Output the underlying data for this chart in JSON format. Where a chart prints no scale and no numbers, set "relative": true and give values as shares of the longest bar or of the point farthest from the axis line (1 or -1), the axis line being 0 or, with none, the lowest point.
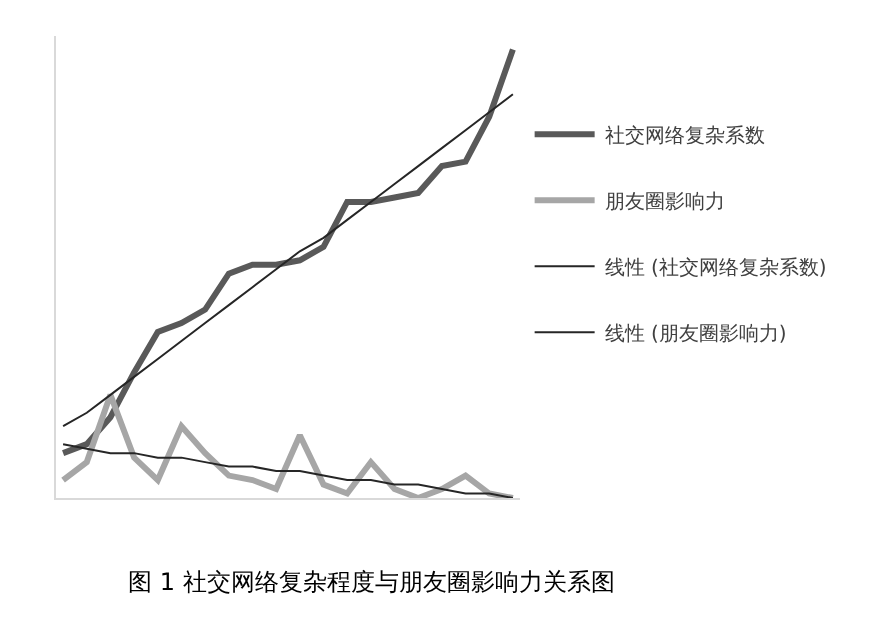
{
  "chart_data": {
    "type": "line",
    "relative": true,
    "title": "图 1 社交网络复杂程度与朋友圈影响力关系图",
    "categories": [
      null,
      null,
      null,
      null,
      null,
      null,
      null,
      null,
      null,
      null,
      null,
      null,
      null,
      null,
      null,
      null,
      null,
      null,
      null,
      null
    ],
    "series": [
      {
        "name": "社交网络复杂系数",
        "color": "#595959",
        "values": [
          0.1,
          0.12,
          0.18,
          0.28,
          0.37,
          0.39,
          0.42,
          0.5,
          0.52,
          0.52,
          0.53,
          0.56,
          0.66,
          0.66,
          0.67,
          0.68,
          0.74,
          0.75,
          0.85,
          1.0
        ]
      },
      {
        "name": "朋友圈影响力",
        "color": "#a6a6a6",
        "values": [
          0.04,
          0.08,
          0.23,
          0.09,
          0.04,
          0.16,
          0.1,
          0.05,
          0.04,
          0.02,
          0.14,
          0.03,
          0.01,
          0.08,
          0.02,
          0.0,
          0.02,
          0.05,
          0.01,
          0.0
        ]
      },
      {
        "name": "线性 (社交网络复杂系数)",
        "color": "#262626",
        "values": [
          0.16,
          0.19,
          0.23,
          0.27,
          0.31,
          0.35,
          0.39,
          0.43,
          0.47,
          0.51,
          0.55,
          0.58,
          0.62,
          0.66,
          0.7,
          0.74,
          0.78,
          0.82,
          0.86,
          0.9
        ]
      },
      {
        "name": "线性 (朋友圈影响力)",
        "color": "#262626",
        "values": [
          0.12,
          0.11,
          0.1,
          0.1,
          0.09,
          0.09,
          0.08,
          0.07,
          0.07,
          0.06,
          0.06,
          0.05,
          0.04,
          0.04,
          0.03,
          0.03,
          0.02,
          0.01,
          0.01,
          0.0
        ]
      }
    ],
    "legend": "right",
    "marker": "none",
    "line_style": "solid"
  }
}
